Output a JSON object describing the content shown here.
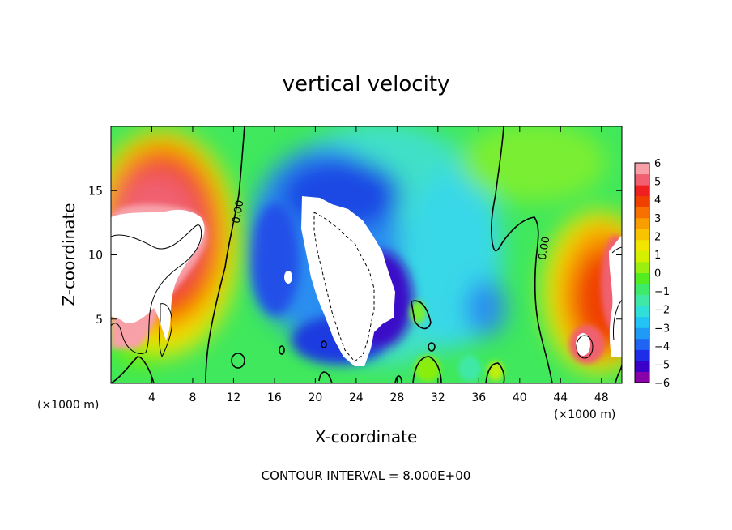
{
  "chart_data": {
    "type": "heatmap",
    "title": "vertical velocity",
    "xlabel": "X-coordinate",
    "ylabel": "Z-coordinate",
    "x_unit_left": "(×1000 m)",
    "x_unit_right": "(×1000 m)",
    "footer": "CONTOUR INTERVAL = 8.000E+00",
    "xlim": [
      0,
      50
    ],
    "ylim": [
      0,
      20
    ],
    "x_ticks": [
      4,
      8,
      12,
      16,
      20,
      24,
      28,
      32,
      36,
      40,
      44,
      48
    ],
    "y_ticks": [
      5,
      10,
      15
    ],
    "colorbar": {
      "min": -6,
      "max": 6,
      "ticks": [
        6,
        5,
        4,
        3,
        2,
        1,
        0,
        -1,
        -2,
        -3,
        -4,
        -5,
        -6
      ],
      "colors": [
        "#8a00a8",
        "#3a00c8",
        "#1e2ee8",
        "#1f64f2",
        "#1f9af6",
        "#22c4f4",
        "#30e0d8",
        "#40e8a8",
        "#3eea6a",
        "#52ec20",
        "#9aee10",
        "#d4f000",
        "#f0e600",
        "#f8c400",
        "#f89e00",
        "#f87000",
        "#f04000",
        "#f02020",
        "#f06070",
        "#f8a0a8"
      ]
    },
    "contour_labels": [
      "0.00",
      "0.00"
    ]
  }
}
